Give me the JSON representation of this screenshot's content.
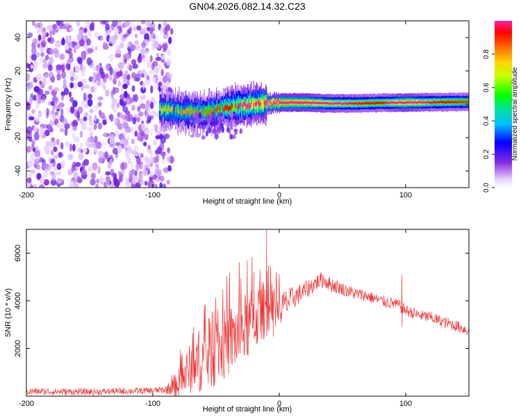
{
  "title": "GN04.2026.082.14.32.C23",
  "colorbar": {
    "label": "Normalized spectral amplitude",
    "ticks": [
      "0.0",
      "0.2",
      "0.4",
      "0.6",
      "0.8"
    ],
    "tick_values": [
      0.0,
      0.2,
      0.4,
      0.6,
      0.8
    ],
    "range": [
      0,
      1
    ]
  },
  "chart_data": [
    {
      "type": "heatmap",
      "title": "GN04.2026.082.14.32.C23",
      "xlabel": "Height of straight line (km)",
      "ylabel": "Frequency (Hz)",
      "xlim": [
        -200,
        150
      ],
      "ylim": [
        -50,
        50
      ],
      "xticks": [
        -200,
        -100,
        0,
        100
      ],
      "xtick_labels": [
        "-200",
        "-100",
        "0",
        "100"
      ],
      "yticks": [
        -40,
        -20,
        0,
        20,
        40
      ],
      "ytick_labels": [
        "-40",
        "-20",
        "0",
        "20",
        "40"
      ],
      "noise_region_x": [
        -200,
        -85
      ],
      "ridge": {
        "x": [
          -95,
          -80,
          -60,
          -40,
          -20,
          0,
          20,
          40,
          60,
          80,
          100,
          120,
          150
        ],
        "frequency": [
          -3,
          -4,
          -5,
          -2,
          0,
          1,
          1,
          0.5,
          0.5,
          0.8,
          1,
          1.2,
          1.5
        ],
        "peak_amplitude": [
          0.35,
          0.4,
          0.45,
          0.55,
          0.75,
          0.95,
          0.9,
          0.7,
          0.6,
          0.55,
          0.85,
          0.6,
          0.5
        ]
      },
      "colormap": "rainbow (purple=low, red/magenta=high)"
    },
    {
      "type": "line",
      "xlabel": "Height of straight line (km)",
      "ylabel": "SNR (10 * v/v)",
      "xlim": [
        -200,
        150
      ],
      "ylim": [
        0,
        7000
      ],
      "xticks": [
        -200,
        -100,
        0,
        100
      ],
      "xtick_labels": [
        "-200",
        "-100",
        "0",
        "100"
      ],
      "yticks": [
        2000,
        4000,
        6000
      ],
      "ytick_labels": [
        "2000",
        "4000",
        "6000"
      ],
      "color": "#ee3333",
      "series": [
        {
          "name": "SNR",
          "x": [
            -200,
            -150,
            -100,
            -90,
            -80,
            -70,
            -60,
            -50,
            -40,
            -30,
            -20,
            -15,
            -10,
            -5,
            0,
            10,
            20,
            30,
            35,
            40,
            50,
            60,
            70,
            80,
            90,
            95,
            100,
            110,
            120,
            130,
            140,
            150
          ],
          "y": [
            200,
            180,
            230,
            260,
            500,
            1200,
            1500,
            1900,
            2300,
            2700,
            3200,
            3500,
            3700,
            3300,
            3600,
            4100,
            4400,
            4800,
            4900,
            4700,
            4500,
            4300,
            4200,
            4000,
            3900,
            3800,
            3600,
            3400,
            3300,
            3100,
            2950,
            2750
          ],
          "noise_amplitude": [
            150,
            140,
            140,
            160,
            600,
            1100,
            1300,
            1500,
            1500,
            1500,
            1400,
            1300,
            1200,
            1000,
            800,
            500,
            400,
            350,
            350,
            320,
            280,
            260,
            260,
            260,
            260,
            260,
            250,
            250,
            250,
            250,
            250,
            250
          ],
          "spikes": [
            {
              "x": -10,
              "y": 7000
            },
            {
              "x": 97,
              "y": 5100
            },
            {
              "x": -20,
              "y": 5200
            },
            {
              "x": -5,
              "y": 4400
            }
          ]
        }
      ]
    }
  ]
}
